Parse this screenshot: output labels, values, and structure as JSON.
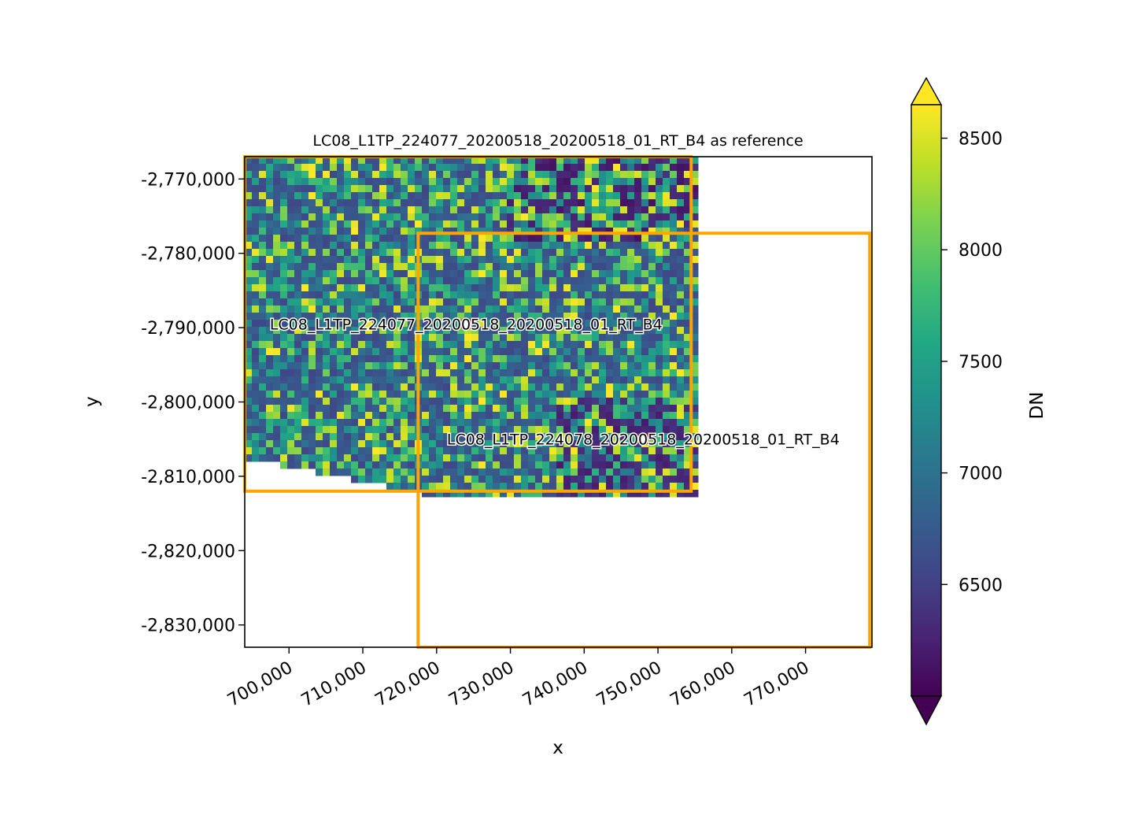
{
  "chart_data": {
    "type": "heatmap",
    "title": "LC08_L1TP_224077_20200518_20200518_01_RT_B4 as reference",
    "xlabel": "x",
    "ylabel": "y",
    "xlim": [
      694000,
      779000
    ],
    "ylim": [
      -2833000,
      -2767000
    ],
    "x_ticks": [
      700000,
      710000,
      720000,
      730000,
      740000,
      750000,
      760000,
      770000
    ],
    "x_tick_labels": [
      "700,000",
      "710,000",
      "720,000",
      "730,000",
      "740,000",
      "750,000",
      "760,000",
      "770,000"
    ],
    "y_ticks": [
      -2770000,
      -2780000,
      -2790000,
      -2800000,
      -2810000,
      -2820000,
      -2830000
    ],
    "y_tick_labels": [
      "-2,770,000",
      "-2,780,000",
      "-2,790,000",
      "-2,800,000",
      "-2,810,000",
      "-2,820,000",
      "-2,830,000"
    ],
    "colorbar": {
      "label": "DN",
      "colormap": "viridis",
      "range": [
        6000,
        8650
      ],
      "extend": "both",
      "ticks": [
        6500,
        7000,
        7500,
        8000,
        8500
      ],
      "tick_labels": [
        "6500",
        "7000",
        "7500",
        "8000",
        "8500"
      ]
    },
    "footprint_color": "#ffa500",
    "footprints": [
      {
        "name": "LC08_L1TP_224077_20200518_20200518_01_RT_B4",
        "x0": 694000,
        "x1": 754500,
        "y0": -2812000,
        "y1": -2767000,
        "center": [
          724000,
          -2789500
        ]
      },
      {
        "name": "LC08_L1TP_224078_20200518_20200518_01_RT_B4",
        "x0": 717500,
        "x1": 778700,
        "y0": -2833000,
        "y1": -2777300,
        "center": [
          748000,
          -2805000
        ]
      }
    ],
    "center_marker_color": "#e31a1c"
  }
}
